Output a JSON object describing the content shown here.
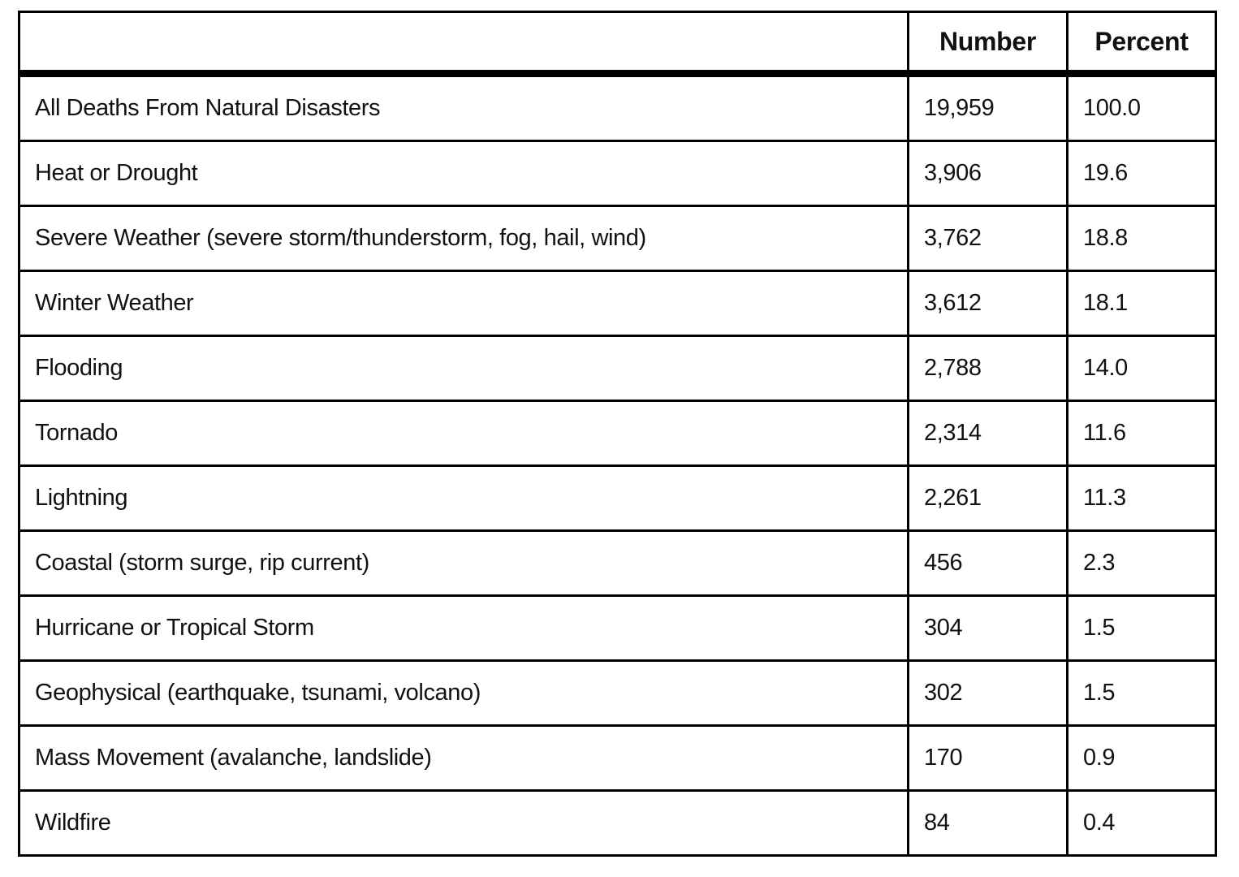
{
  "colors": {
    "background": "#ffffff",
    "border": "#000000",
    "text": "#111111"
  },
  "table": {
    "header": {
      "category": "",
      "number": "Number",
      "percent": "Percent"
    },
    "rows": [
      {
        "label": "All Deaths From Natural Disasters",
        "number": "19,959",
        "percent": "100.0"
      },
      {
        "label": "Heat or Drought",
        "number": "3,906",
        "percent": "19.6"
      },
      {
        "label": "Severe Weather (severe storm/thunderstorm, fog, hail, wind)",
        "number": "3,762",
        "percent": "18.8"
      },
      {
        "label": "Winter Weather",
        "number": "3,612",
        "percent": "18.1"
      },
      {
        "label": "Flooding",
        "number": "2,788",
        "percent": "14.0"
      },
      {
        "label": "Tornado",
        "number": "2,314",
        "percent": "11.6"
      },
      {
        "label": "Lightning",
        "number": "2,261",
        "percent": "11.3"
      },
      {
        "label": "Coastal (storm surge, rip current)",
        "number": "456",
        "percent": "2.3"
      },
      {
        "label": "Hurricane or Tropical Storm",
        "number": "304",
        "percent": "1.5"
      },
      {
        "label": "Geophysical (earthquake, tsunami, volcano)",
        "number": "302",
        "percent": "1.5"
      },
      {
        "label": "Mass Movement (avalanche, landslide)",
        "number": "170",
        "percent": "0.9"
      },
      {
        "label": "Wildfire",
        "number": "84",
        "percent": "0.4"
      }
    ]
  },
  "chart_data": {
    "type": "table",
    "columns": [
      "",
      "Number",
      "Percent"
    ],
    "rows": [
      [
        "All Deaths From Natural Disasters",
        19959,
        100.0
      ],
      [
        "Heat or Drought",
        3906,
        19.6
      ],
      [
        "Severe Weather (severe storm/thunderstorm, fog, hail, wind)",
        3762,
        18.8
      ],
      [
        "Winter Weather",
        3612,
        18.1
      ],
      [
        "Flooding",
        2788,
        14.0
      ],
      [
        "Tornado",
        2314,
        11.6
      ],
      [
        "Lightning",
        2261,
        11.3
      ],
      [
        "Coastal (storm surge, rip current)",
        456,
        2.3
      ],
      [
        "Hurricane or Tropical Storm",
        304,
        1.5
      ],
      [
        "Geophysical (earthquake, tsunami, volcano)",
        302,
        1.5
      ],
      [
        "Mass Movement (avalanche, landslide)",
        170,
        0.9
      ],
      [
        "Wildfire",
        84,
        0.4
      ]
    ]
  }
}
